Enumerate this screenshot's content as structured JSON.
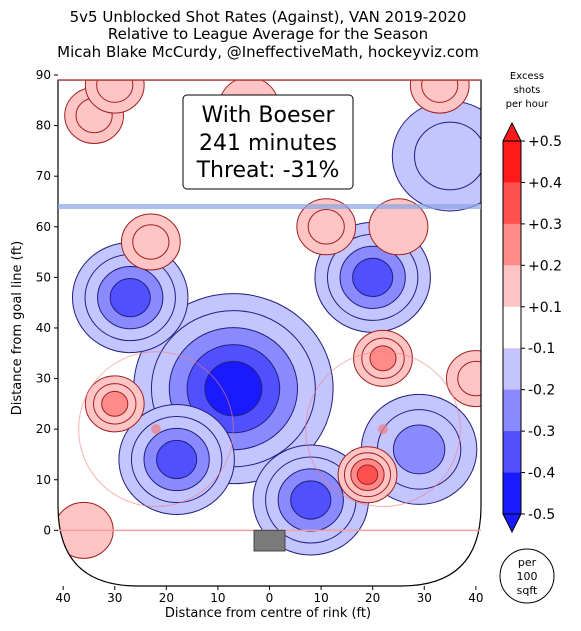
{
  "chart_data": {
    "type": "heatmap",
    "title_lines": [
      "5v5 Unblocked Shot Rates (Against), VAN 2019-2020",
      "Relative to League Average for the Season",
      "Micah Blake McCurdy, @IneffectiveMath, hockeyviz.com"
    ],
    "xlabel": "Distance from centre of rink (ft)",
    "ylabel": "Distance from goal line (ft)",
    "xlim": [
      -41,
      41
    ],
    "ylim": [
      -11,
      90
    ],
    "x_ticks": [
      -40,
      -30,
      -20,
      -10,
      0,
      10,
      20,
      30,
      40
    ],
    "x_tick_labels": [
      "40",
      "30",
      "20",
      "10",
      "0",
      "10",
      "20",
      "30",
      "40"
    ],
    "y_ticks": [
      0,
      10,
      20,
      30,
      40,
      50,
      60,
      70,
      80,
      90
    ],
    "y_tick_labels": [
      "0",
      "10",
      "20",
      "30",
      "40",
      "50",
      "60",
      "70",
      "80",
      "90"
    ],
    "annotation_lines": [
      "With Boeser",
      "241 minutes",
      "Threat: -31%"
    ],
    "colorbar": {
      "title_lines": [
        "Excess",
        "shots",
        "per hour"
      ],
      "tick_labels": [
        "+0.5",
        "+0.4",
        "+0.3",
        "+0.2",
        "+0.1",
        "-0.1",
        "-0.2",
        "-0.3",
        "-0.4",
        "-0.5"
      ],
      "level_values": [
        0.5,
        0.4,
        0.3,
        0.2,
        0.1,
        -0.1,
        -0.2,
        -0.3,
        -0.4,
        -0.5
      ],
      "colors": [
        "#ff1a1a",
        "#ff5050",
        "#ff8a8a",
        "#ffc4c4",
        "#ffffff",
        "#c4c4ff",
        "#8a8aff",
        "#5050ff",
        "#1a1aff"
      ],
      "unit_lines": [
        "per",
        "100",
        "sqft"
      ]
    },
    "blobs": [
      {
        "x": -7,
        "y": 28,
        "level": -0.5
      },
      {
        "x": -27,
        "y": 46,
        "level": -0.4
      },
      {
        "x": 20,
        "y": 50,
        "level": -0.4
      },
      {
        "x": -18,
        "y": 14,
        "level": -0.4
      },
      {
        "x": 29,
        "y": 16,
        "level": -0.3
      },
      {
        "x": 8,
        "y": 6,
        "level": -0.4
      },
      {
        "x": 35,
        "y": 74,
        "level": -0.2
      },
      {
        "x": -30,
        "y": 25,
        "level": 0.3
      },
      {
        "x": 22,
        "y": 34,
        "level": 0.3
      },
      {
        "x": 19,
        "y": 11,
        "level": 0.4
      },
      {
        "x": 40,
        "y": 30,
        "level": 0.2
      },
      {
        "x": -34,
        "y": 82,
        "level": 0.2
      },
      {
        "x": -30,
        "y": 88,
        "level": 0.2
      },
      {
        "x": 33,
        "y": 88,
        "level": 0.2
      },
      {
        "x": -23,
        "y": 57,
        "level": 0.2
      },
      {
        "x": 11,
        "y": 60,
        "level": 0.2
      },
      {
        "x": -4,
        "y": 84,
        "level": 0.1
      },
      {
        "x": 25,
        "y": 60,
        "level": 0.1
      },
      {
        "x": -36,
        "y": 0,
        "level": 0.1
      }
    ]
  }
}
